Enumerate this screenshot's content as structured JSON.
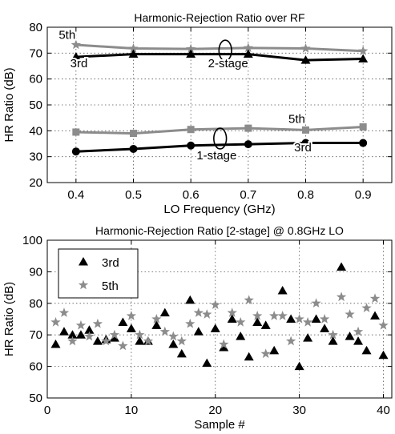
{
  "chart_data": [
    {
      "type": "line",
      "title": "Harmonic-Rejection Ratio over RF",
      "xlabel": "LO Frequency (GHz)",
      "ylabel": "HR Ratio (dB)",
      "xlim": [
        0.35,
        0.95
      ],
      "ylim": [
        20,
        80
      ],
      "xticks": [
        0.4,
        0.5,
        0.6,
        0.7,
        0.8,
        0.9
      ],
      "xtick_labels": [
        "0.4",
        "0.5",
        "0.6",
        "0.7",
        "0.8",
        "0.9"
      ],
      "yticks": [
        20,
        30,
        40,
        50,
        60,
        70,
        80
      ],
      "ytick_labels": [
        "20",
        "30",
        "40",
        "50",
        "60",
        "70",
        "80"
      ],
      "grid": true,
      "x": [
        0.4,
        0.5,
        0.6,
        0.7,
        0.8,
        0.9
      ],
      "series": [
        {
          "group": "2-stage",
          "harmonic": "5th",
          "marker": "star",
          "color": "#8c8c8c",
          "values": [
            73.2,
            71.8,
            71.6,
            72.0,
            71.8,
            70.8
          ]
        },
        {
          "group": "2-stage",
          "harmonic": "3rd",
          "marker": "triangle",
          "color": "#000000",
          "values": [
            68.5,
            69.6,
            69.6,
            69.6,
            67.3,
            67.8
          ]
        },
        {
          "group": "1-stage",
          "harmonic": "5th",
          "marker": "square",
          "color": "#8c8c8c",
          "values": [
            39.5,
            39.0,
            40.5,
            41.0,
            40.3,
            41.5
          ]
        },
        {
          "group": "1-stage",
          "harmonic": "3rd",
          "marker": "circle",
          "color": "#000000",
          "values": [
            32.0,
            33.0,
            34.3,
            34.8,
            35.3,
            35.3
          ]
        }
      ],
      "annotations": [
        {
          "text": "5th",
          "x": 0.37,
          "y": 75.5
        },
        {
          "text": "3rd",
          "x": 0.39,
          "y": 64.5
        },
        {
          "text": "2-stage",
          "x": 0.63,
          "y": 64.5
        },
        {
          "text": "5th",
          "x": 0.77,
          "y": 43.0
        },
        {
          "text": "3rd",
          "x": 0.78,
          "y": 32.0
        },
        {
          "text": "1-stage",
          "x": 0.61,
          "y": 29.0
        }
      ],
      "ellipses": [
        {
          "x": 0.66,
          "y": 71.0,
          "rx": 0.011,
          "ry": 4.0
        },
        {
          "x": 0.651,
          "y": 37.0,
          "rx": 0.011,
          "ry": 4.0
        }
      ]
    },
    {
      "type": "scatter",
      "title": "Harmonic-Rejection Ratio [2-stage] @ 0.8GHz LO",
      "xlabel": "Sample #",
      "ylabel": "HR Ratio (dB)",
      "xlim": [
        0,
        41
      ],
      "ylim": [
        50,
        100
      ],
      "xticks": [
        0,
        10,
        20,
        30,
        40
      ],
      "xtick_labels": [
        "0",
        "10",
        "20",
        "30",
        "40"
      ],
      "yticks": [
        50,
        60,
        70,
        80,
        90,
        100
      ],
      "ytick_labels": [
        "50",
        "60",
        "70",
        "80",
        "90",
        "100"
      ],
      "grid": true,
      "legend": {
        "position": "top-left",
        "entries": [
          "3rd",
          "5th"
        ]
      },
      "series": [
        {
          "name": "3rd",
          "marker": "triangle",
          "color": "#000000",
          "x": [
            1,
            2,
            3,
            4,
            5,
            6,
            7,
            8,
            9,
            10,
            11,
            12,
            13,
            14,
            15,
            16,
            17,
            18,
            19,
            20,
            21,
            22,
            23,
            24,
            25,
            26,
            27,
            28,
            29,
            30,
            31,
            32,
            33,
            34,
            35,
            36,
            37,
            38,
            39,
            40
          ],
          "values": [
            67,
            71,
            70,
            70,
            71.5,
            68,
            68.5,
            69,
            74,
            72,
            68,
            68,
            73,
            77,
            67,
            64,
            81,
            71,
            61,
            72,
            66,
            75,
            69.5,
            63,
            74,
            73,
            65,
            84,
            75,
            60,
            69,
            75,
            72,
            68,
            91.5,
            69.5,
            68,
            65,
            76,
            63.5
          ]
        },
        {
          "name": "5th",
          "marker": "star",
          "color": "#8c8c8c",
          "x": [
            1,
            2,
            3,
            4,
            5,
            6,
            7,
            8,
            9,
            10,
            11,
            12,
            13,
            14,
            15,
            16,
            17,
            18,
            19,
            20,
            21,
            22,
            23,
            24,
            25,
            26,
            27,
            28,
            29,
            30,
            31,
            32,
            33,
            34,
            35,
            36,
            37,
            38,
            39,
            40
          ],
          "values": [
            74,
            77,
            68,
            73,
            69.5,
            73.5,
            68,
            70,
            66.5,
            76,
            70,
            68,
            75,
            71,
            69.5,
            68,
            73.5,
            77,
            76.5,
            79.5,
            67,
            77,
            74,
            81,
            76,
            64,
            76,
            76,
            68,
            75,
            74,
            80,
            75,
            70,
            82,
            76.5,
            71,
            78.5,
            81.5,
            73
          ]
        }
      ]
    }
  ]
}
